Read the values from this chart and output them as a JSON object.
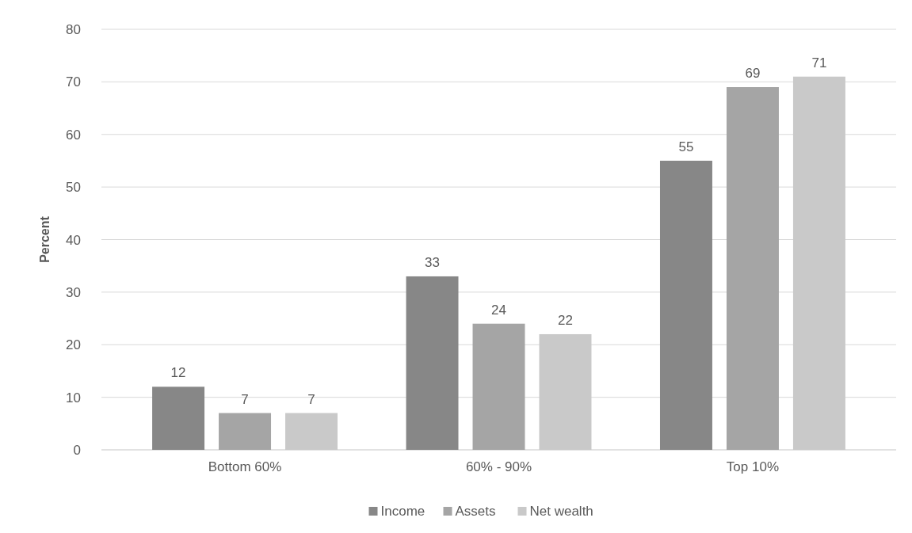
{
  "chart_data": {
    "type": "bar",
    "ylabel": "Percent",
    "categories": [
      "Bottom 60%",
      "60% - 90%",
      "Top 10%"
    ],
    "series": [
      {
        "name": "Income",
        "color": "#878787",
        "values": [
          12,
          33,
          55
        ]
      },
      {
        "name": "Assets",
        "color": "#a5a5a5",
        "values": [
          7,
          24,
          69
        ]
      },
      {
        "name": "Net wealth",
        "color": "#c9c9c9",
        "values": [
          7,
          22,
          71
        ]
      }
    ],
    "ylim": [
      0,
      80
    ],
    "yticks": [
      0,
      10,
      20,
      30,
      40,
      50,
      60,
      70,
      80
    ],
    "grid": "y",
    "legend": "bottom",
    "data_labels": true
  }
}
